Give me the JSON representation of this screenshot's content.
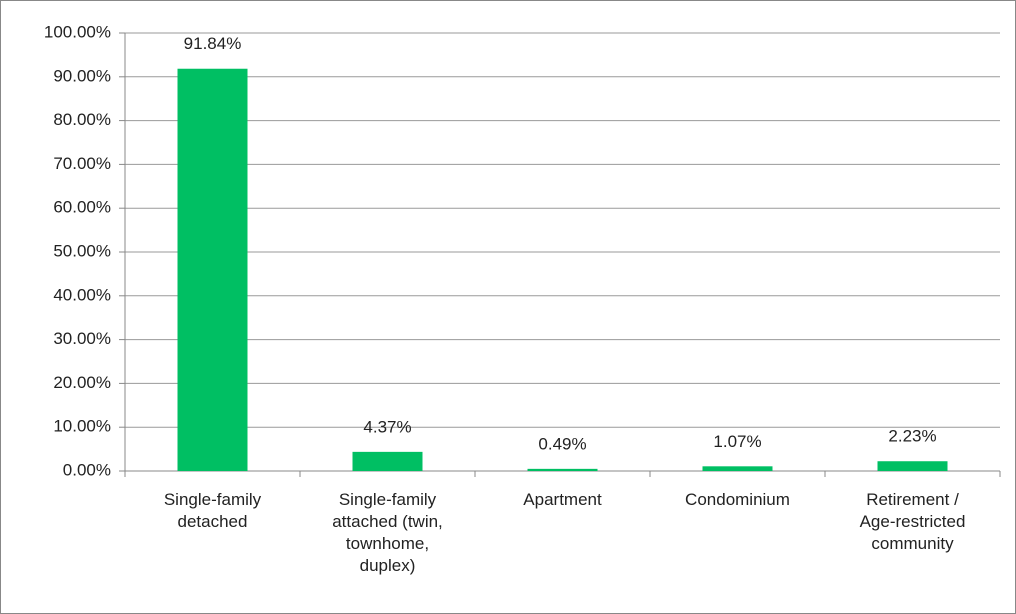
{
  "chart_data": {
    "type": "bar",
    "categories": [
      "Single-family detached",
      "Single-family attached (twin, townhome, duplex)",
      "Apartment",
      "Condominium",
      "Retirement / Age-restricted community"
    ],
    "values": [
      91.84,
      4.37,
      0.49,
      1.07,
      2.23
    ],
    "value_labels": [
      "91.84%",
      "4.37%",
      "0.49%",
      "1.07%",
      "2.23%"
    ],
    "color": "#00bf63",
    "ylim": [
      0,
      100
    ],
    "yticks": [
      {
        "value": 0,
        "label": "0.00%"
      },
      {
        "value": 10,
        "label": "10.00%"
      },
      {
        "value": 20,
        "label": "20.00%"
      },
      {
        "value": 30,
        "label": "30.00%"
      },
      {
        "value": 40,
        "label": "40.00%"
      },
      {
        "value": 50,
        "label": "50.00%"
      },
      {
        "value": 60,
        "label": "60.00%"
      },
      {
        "value": 70,
        "label": "70.00%"
      },
      {
        "value": 80,
        "label": "80.00%"
      },
      {
        "value": 90,
        "label": "90.00%"
      },
      {
        "value": 100,
        "label": "100.00%"
      }
    ],
    "grid": true
  }
}
